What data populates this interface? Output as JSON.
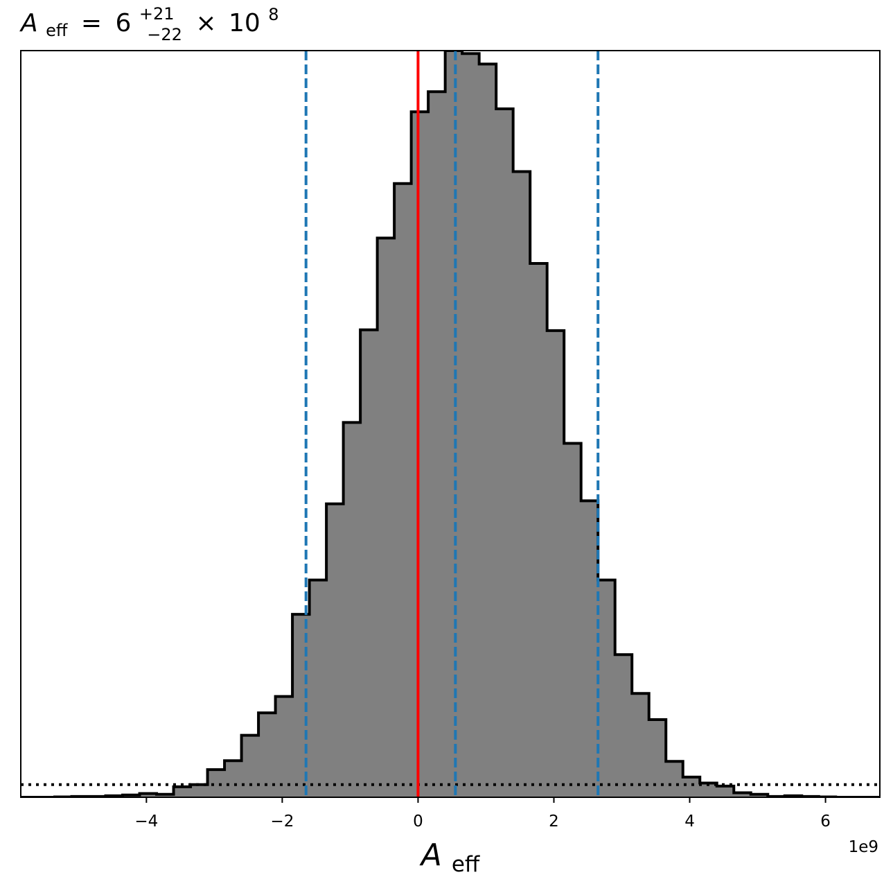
{
  "chart_data": {
    "type": "bar",
    "subtype": "histogram-step",
    "title": {
      "symbol": "A",
      "subscript": "eff",
      "median": "6",
      "upper": "+21",
      "lower": "−22",
      "times": "×",
      "base": "10",
      "exponent": "8"
    },
    "xlabel": {
      "symbol": "A",
      "subscript": "eff"
    },
    "x_offset_label": "1e9",
    "xlim": [
      -5850000000.0,
      6800000000.0
    ],
    "ylim": [
      0,
      1.0
    ],
    "x_ticks": [
      -4000000000.0,
      -2000000000.0,
      0,
      2000000000.0,
      4000000000.0,
      6000000000.0
    ],
    "x_tick_labels": [
      "−4",
      "−2",
      "0",
      "2",
      "4",
      "6"
    ],
    "bin_edges": [
      -5850000000.0,
      -5600000000.0,
      -5350000000.0,
      -5100000000.0,
      -4850000000.0,
      -4600000000.0,
      -4350000000.0,
      -4100000000.0,
      -3850000000.0,
      -3600000000.0,
      -3350000000.0,
      -3100000000.0,
      -2850000000.0,
      -2600000000.0,
      -2350000000.0,
      -2100000000.0,
      -1850000000.0,
      -1600000000.0,
      -1350000000.0,
      -1100000000.0,
      -850000000.0,
      -600000000.0,
      -350000000.0,
      -100000000.0,
      150000000.0,
      400000000.0,
      650000000.0,
      900000000.0,
      1150000000.0,
      1400000000.0,
      1650000000.0,
      1900000000.0,
      2150000000.0,
      2400000000.0,
      2650000000.0,
      2900000000.0,
      3150000000.0,
      3400000000.0,
      3650000000.0,
      3900000000.0,
      4150000000.0,
      4400000000.0,
      4650000000.0,
      4900000000.0,
      5150000000.0,
      5400000000.0,
      5650000000.0,
      5900000000.0,
      6150000000.0,
      6400000000.0,
      6650000000.0,
      6800000000.0
    ],
    "values": [
      0.0,
      0.0,
      0.0005,
      0.001,
      0.001,
      0.002,
      0.003,
      0.005,
      0.004,
      0.014,
      0.017,
      0.037,
      0.049,
      0.083,
      0.113,
      0.135,
      0.245,
      0.291,
      0.393,
      0.502,
      0.626,
      0.749,
      0.822,
      0.918,
      0.945,
      1.0,
      0.996,
      0.982,
      0.922,
      0.838,
      0.715,
      0.625,
      0.474,
      0.397,
      0.291,
      0.191,
      0.139,
      0.104,
      0.048,
      0.027,
      0.019,
      0.015,
      0.006,
      0.004,
      0.001,
      0.002,
      0.001,
      0.0005,
      0.0,
      0.0,
      0.0
    ],
    "fill_color": "#808080",
    "edge_color": "#000000",
    "vlines": [
      {
        "x": 0,
        "color": "#ff0000",
        "style": "solid"
      },
      {
        "x": -1650000000.0,
        "color": "#1f77b4",
        "style": "dashed"
      },
      {
        "x": 550000000.0,
        "color": "#1f77b4",
        "style": "dashed"
      },
      {
        "x": 2650000000.0,
        "color": "#1f77b4",
        "style": "dashed"
      }
    ],
    "hlines": [
      {
        "y": 0.017,
        "color": "#000000",
        "style": "dotted"
      }
    ],
    "grid": false,
    "legend": "none"
  }
}
